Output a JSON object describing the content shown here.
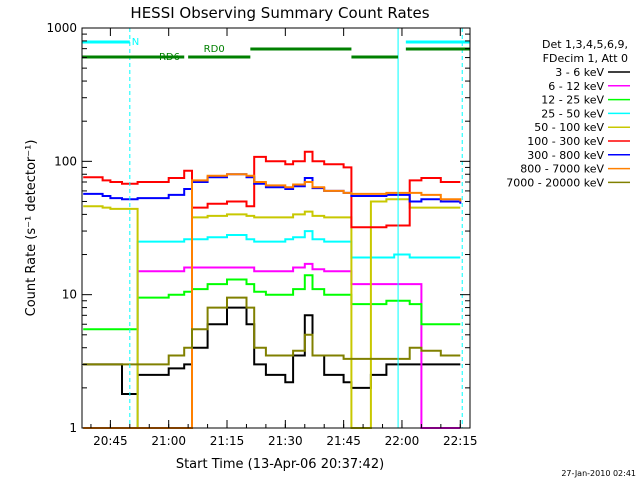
{
  "title": "HESSI Observing Summary Count Rates",
  "timestamp": "27-Jan-2010 02:41",
  "chart_data": {
    "type": "line",
    "title": "HESSI Observing Summary Count Rates",
    "xlabel": "Start Time (13-Apr-06 20:37:42)",
    "ylabel": "Count Rate (s⁻¹ detector⁻¹)",
    "yscale": "log",
    "ylim": [
      1,
      1000
    ],
    "xlim": [
      "20:37:42",
      "22:17:30"
    ],
    "x_ticks": [
      "20:45",
      "21:00",
      "21:15",
      "21:30",
      "21:45",
      "22:00",
      "22:15"
    ],
    "y_ticks": [
      "1",
      "10",
      "100",
      "1000"
    ],
    "legend_header": [
      "Det 1,3,4,5,6,9,",
      "FDecim 1, Att 0"
    ],
    "legend_position": "right",
    "grid": false,
    "time_markers": [
      {
        "label": "N",
        "color": "#00ffff",
        "segments": [
          [
            "20:37:42",
            "20:50:00"
          ],
          [
            "22:01:00",
            "22:17:30"
          ]
        ]
      },
      {
        "label": "RD0",
        "color": "#008000",
        "segments": [
          [
            "21:21:00",
            "21:47:00"
          ],
          [
            "22:01:00",
            "22:17:30"
          ]
        ]
      },
      {
        "label": "RD6",
        "color": "#008000",
        "segments": [
          [
            "20:37:42",
            "21:04:00"
          ],
          [
            "21:05:00",
            "21:21:00"
          ],
          [
            "21:47:00",
            "21:59:00"
          ]
        ]
      }
    ],
    "vertical_lines": [
      {
        "time": "20:37:42",
        "style": "solid",
        "color": "#00ffff"
      },
      {
        "time": "20:50:00",
        "style": "dashed",
        "color": "#00ffff"
      },
      {
        "time": "21:59:00",
        "style": "solid",
        "color": "#00ffff"
      },
      {
        "time": "22:15:30",
        "style": "dashed",
        "color": "#00ffff"
      }
    ],
    "x": [
      "20:38",
      "20:43",
      "20:45",
      "20:48",
      "20:52",
      "21:00",
      "21:04",
      "21:06",
      "21:10",
      "21:15",
      "21:20",
      "21:22",
      "21:25",
      "21:30",
      "21:32",
      "21:35",
      "21:37",
      "21:40",
      "21:45",
      "21:47",
      "21:52",
      "21:56",
      "21:58",
      "22:02",
      "22:05",
      "22:10",
      "22:15"
    ],
    "series": [
      {
        "name": "3 - 6 keV",
        "color": "#000000",
        "values": [
          3,
          3,
          3,
          1.8,
          2.5,
          2.8,
          3,
          4,
          6,
          8,
          6,
          3,
          2.5,
          2.2,
          3.5,
          7,
          3.5,
          2.5,
          2.2,
          2,
          2.5,
          3,
          3,
          3,
          3,
          3,
          3
        ]
      },
      {
        "name": "6 - 12 keV",
        "color": "#ff00ff",
        "values": [
          1,
          1,
          1,
          1,
          15,
          15,
          16,
          16,
          16,
          16,
          16,
          15,
          15,
          15,
          16,
          17,
          15.5,
          15,
          15,
          12,
          12,
          12,
          12,
          12,
          1,
          1,
          1
        ]
      },
      {
        "name": "12 - 25 keV",
        "color": "#00ff00",
        "values": [
          5.5,
          5.5,
          5.5,
          5.5,
          9.5,
          10,
          10.5,
          11,
          12,
          13,
          12,
          10.5,
          10,
          10,
          11,
          14,
          11,
          10,
          10,
          8.5,
          8.5,
          9,
          9,
          8.5,
          6,
          6,
          6
        ]
      },
      {
        "name": "25 - 50 keV",
        "color": "#00ffff",
        "values": [
          1,
          1,
          1,
          1,
          25,
          25,
          26,
          26,
          27,
          28,
          26,
          25,
          25,
          26,
          27,
          30,
          26,
          25,
          25,
          19,
          19,
          19,
          20,
          19,
          19,
          19,
          19
        ]
      },
      {
        "name": "50 - 100 keV",
        "color": "#c8c800",
        "values": [
          46,
          45,
          44,
          44,
          1,
          1,
          1,
          38,
          39,
          40,
          39,
          38,
          38,
          38,
          40,
          42,
          39,
          38,
          38,
          1,
          50,
          52,
          52,
          45,
          45,
          45,
          45
        ]
      },
      {
        "name": "100 - 300 keV",
        "color": "#ff0000",
        "values": [
          76,
          72,
          70,
          68,
          70,
          75,
          85,
          45,
          48,
          50,
          46,
          108,
          100,
          95,
          100,
          118,
          100,
          95,
          90,
          32,
          32,
          33,
          33,
          72,
          75,
          70,
          70
        ]
      },
      {
        "name": "300 - 800 keV",
        "color": "#0000ff",
        "values": [
          57,
          55,
          53,
          52,
          53,
          56,
          62,
          70,
          76,
          80,
          76,
          68,
          64,
          62,
          65,
          75,
          63,
          60,
          58,
          55,
          55,
          56,
          56,
          50,
          52,
          50,
          48
        ]
      },
      {
        "name": "800 - 7000 keV",
        "color": "#ff8000",
        "values": [
          1,
          1,
          1,
          1,
          1,
          1,
          1,
          72,
          78,
          80,
          78,
          70,
          66,
          64,
          67,
          70,
          64,
          60,
          58,
          57,
          57,
          58,
          58,
          58,
          56,
          52,
          50
        ]
      },
      {
        "name": "7000 - 20000 keV",
        "color": "#808000",
        "values": [
          3,
          3,
          3,
          3,
          3,
          3.5,
          4,
          5.5,
          8,
          9.5,
          8,
          4,
          3.5,
          3.5,
          3.8,
          5,
          3.5,
          3.5,
          3.3,
          3.3,
          3.3,
          3.3,
          3.3,
          4,
          3.8,
          3.5,
          3.5
        ]
      }
    ]
  }
}
